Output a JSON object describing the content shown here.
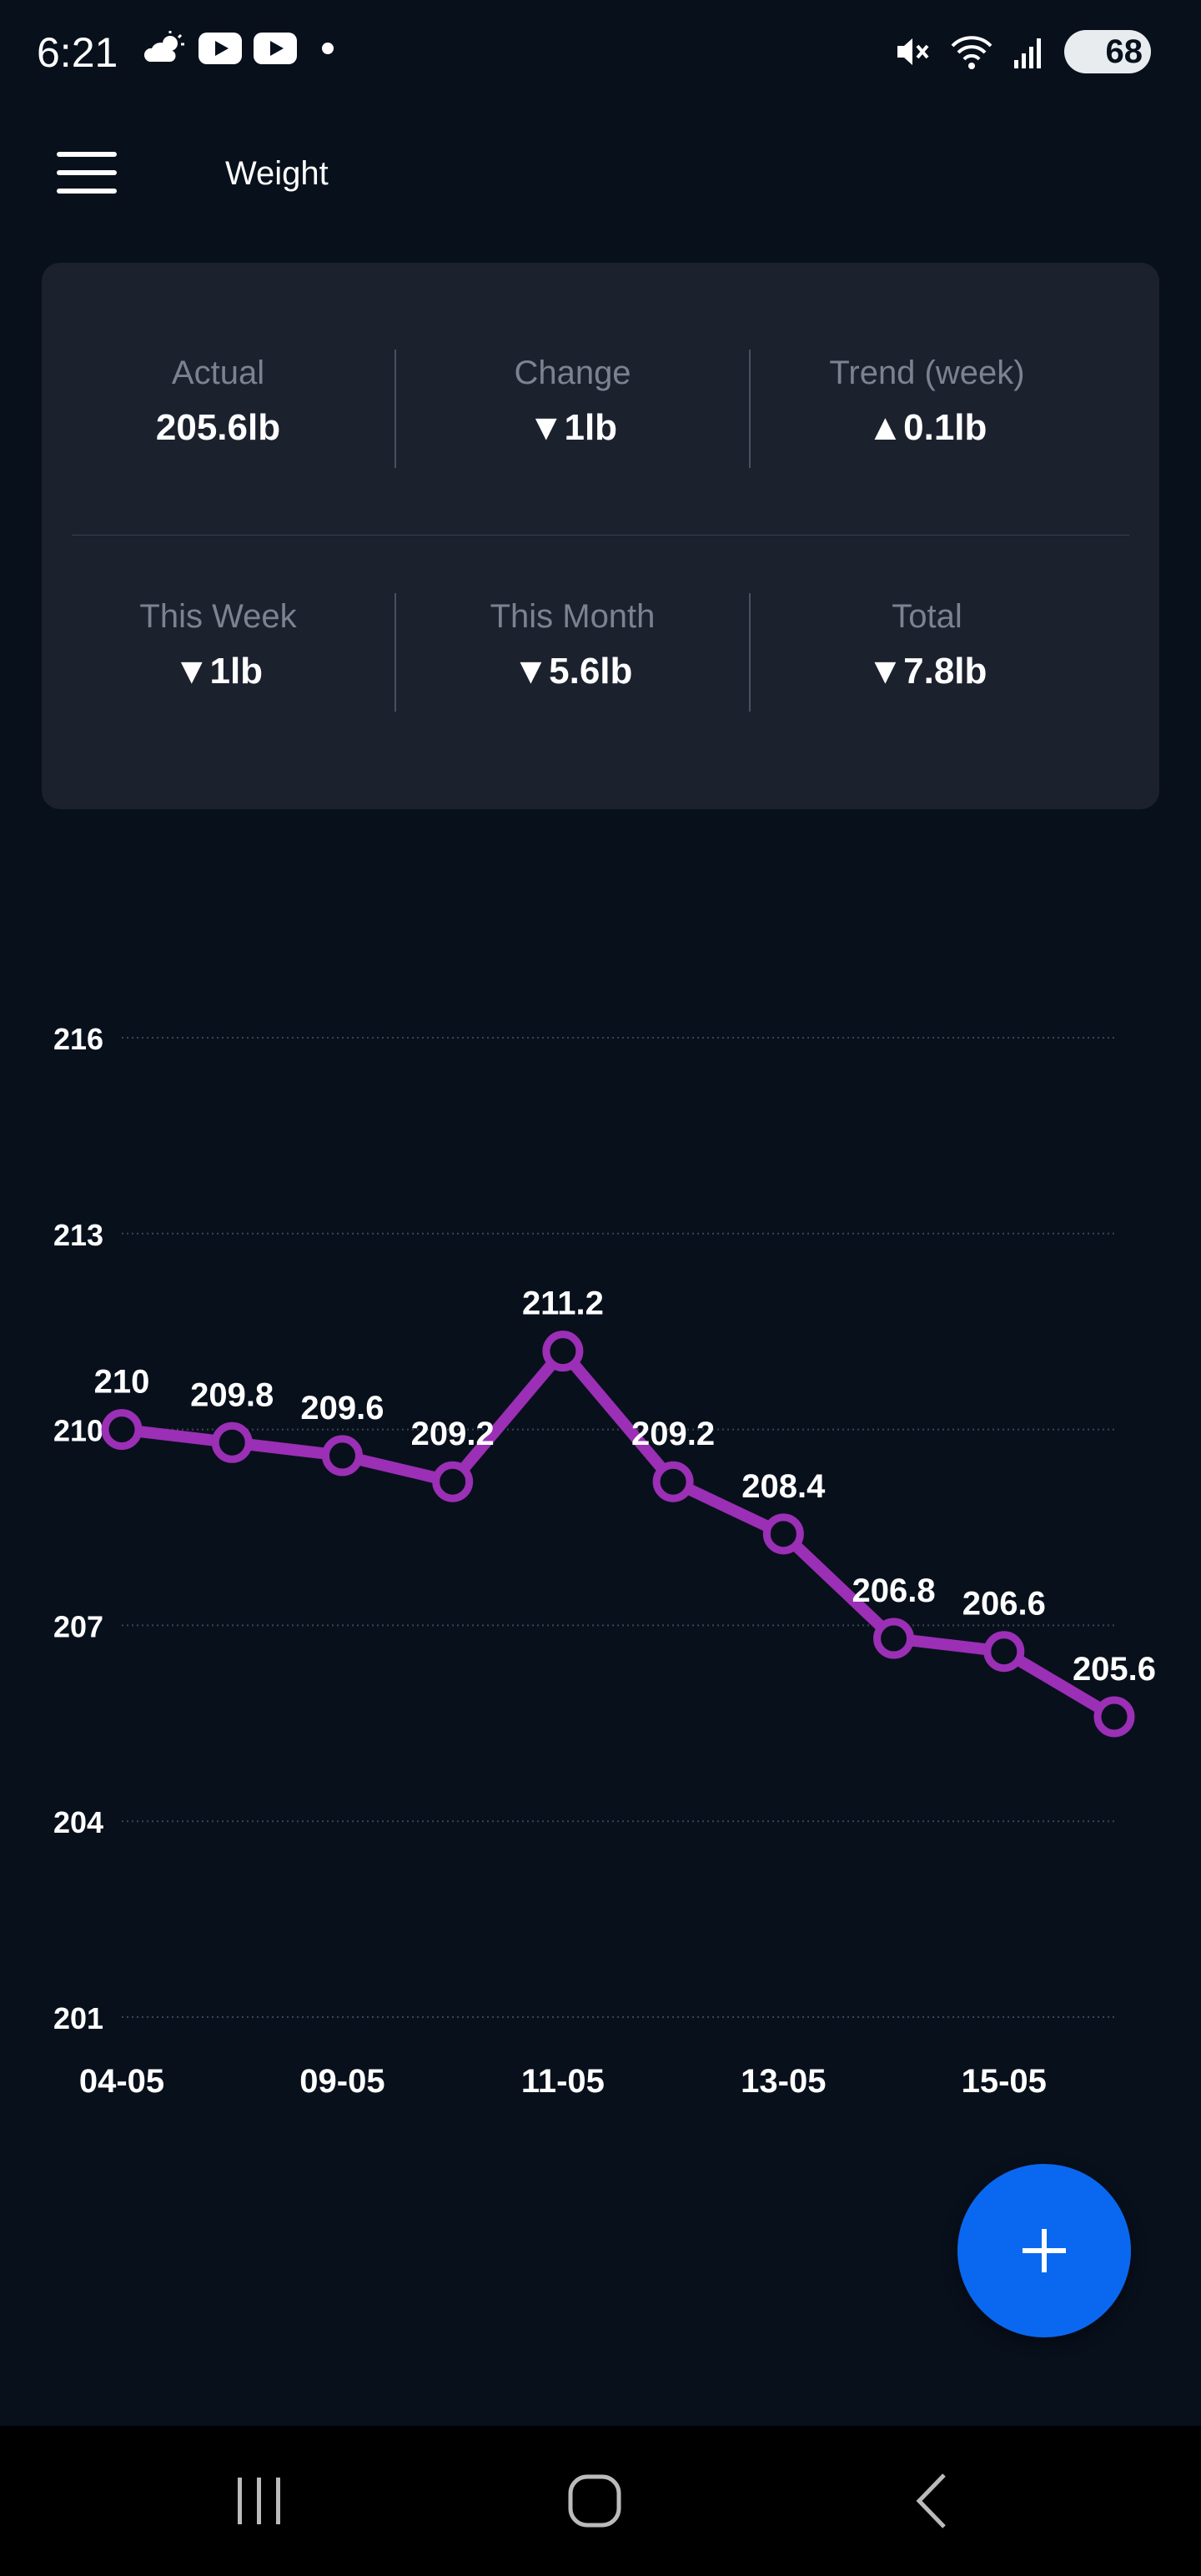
{
  "status_bar": {
    "time": "6:21",
    "battery": "68",
    "icons_left": [
      "cloud-sun-icon",
      "youtube-icon",
      "youtube-icon",
      "notification-dot-icon"
    ],
    "icons_right": [
      "mute-icon",
      "wifi-icon",
      "signal-icon",
      "battery-icon"
    ]
  },
  "app_bar": {
    "title": "Weight",
    "menu_icon": "hamburger-menu-icon"
  },
  "stats": {
    "row1": [
      {
        "label": "Actual",
        "value": "205.6lb"
      },
      {
        "label": "Change",
        "value": "▼1lb"
      },
      {
        "label": "Trend (week)",
        "value": "▲0.1lb"
      }
    ],
    "row2": [
      {
        "label": "This Week",
        "value": "▼1lb"
      },
      {
        "label": "This Month",
        "value": "▼5.6lb"
      },
      {
        "label": "Total",
        "value": "▼7.8lb"
      }
    ]
  },
  "chart_data": {
    "type": "line",
    "x_tick_labels": [
      "04-05",
      "09-05",
      "11-05",
      "13-05",
      "15-05"
    ],
    "y_ticks": [
      201,
      204,
      207,
      210,
      213,
      216
    ],
    "ylim": [
      201,
      216
    ],
    "grid": true,
    "series": [
      {
        "values": [
          210,
          209.8,
          209.6,
          209.2,
          211.2,
          209.2,
          208.4,
          206.8,
          206.6,
          205.6
        ],
        "data_labels": [
          "210",
          "209.8",
          "209.6",
          "209.2",
          "211.2",
          "209.2",
          "208.4",
          "206.8",
          "206.6",
          "205.6"
        ],
        "color": "#9b2fb5"
      }
    ]
  },
  "fab": {
    "icon": "plus-icon"
  },
  "nav_bar": {
    "icons": [
      "recent-apps-icon",
      "home-icon",
      "back-icon"
    ]
  },
  "colors": {
    "background": "#08101c",
    "card": "#1c212e",
    "line": "#9b2fb5",
    "fab": "#0a68f0"
  }
}
